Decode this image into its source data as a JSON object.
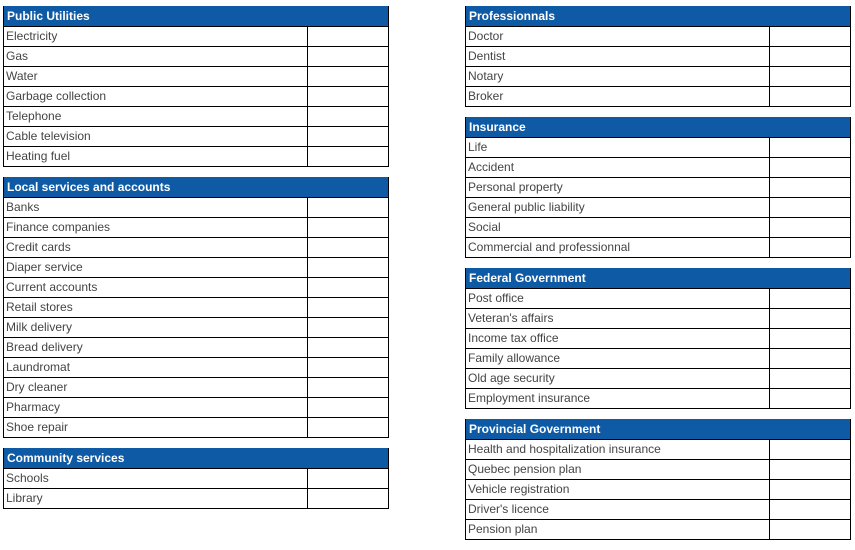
{
  "left": [
    {
      "title": "Public Utilities",
      "items": [
        "Electricity",
        "Gas",
        "Water",
        "Garbage collection",
        "Telephone",
        "Cable television",
        "Heating fuel"
      ]
    },
    {
      "title": "Local services and accounts",
      "items": [
        "Banks",
        "Finance companies",
        "Credit cards",
        "Diaper service",
        "Current accounts",
        "Retail stores",
        "Milk delivery",
        "Bread delivery",
        "Laundromat",
        "Dry cleaner",
        "Pharmacy",
        "Shoe repair"
      ]
    },
    {
      "title": "Community services",
      "items": [
        "Schools",
        "Library"
      ]
    }
  ],
  "right": [
    {
      "title": "Professionnals",
      "items": [
        "Doctor",
        "Dentist",
        "Notary",
        "Broker"
      ]
    },
    {
      "title": "Insurance",
      "items": [
        "Life",
        "Accident",
        "Personal property",
        "General public liability",
        "Social",
        "Commercial and professionnal"
      ]
    },
    {
      "title": "Federal Government",
      "items": [
        "Post office",
        "Veteran's affairs",
        "Income tax office",
        "Family allowance",
        "Old age security",
        "Employment insurance"
      ]
    },
    {
      "title": "Provincial Government",
      "items": [
        "Health and hospitalization insurance",
        "Quebec pension plan",
        "Vehicle registration",
        "Driver's licence",
        "Pension plan"
      ]
    }
  ],
  "colors": {
    "header": "#0f5aa5"
  }
}
